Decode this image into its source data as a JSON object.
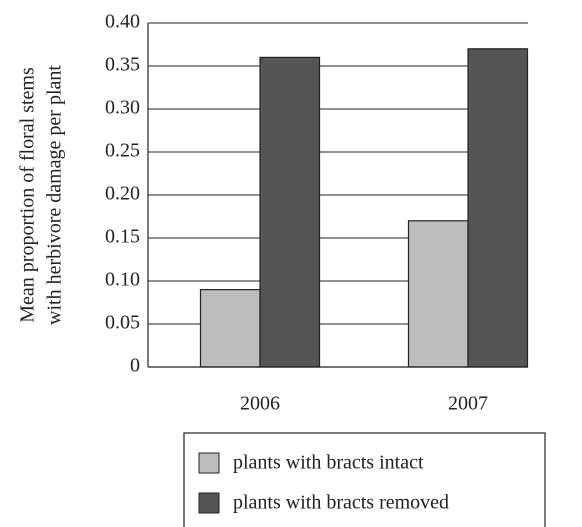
{
  "chart_data": {
    "type": "bar",
    "y_label_lines": [
      "Mean proportion of floral stems",
      "with herbivore damage per plant"
    ],
    "categories": [
      "2006",
      "2007"
    ],
    "series": [
      {
        "name": "plants with bracts intact",
        "color": "#bdbdbd",
        "values": [
          0.09,
          0.17
        ]
      },
      {
        "name": "plants with bracts removed",
        "color": "#555555",
        "values": [
          0.36,
          0.37
        ]
      }
    ],
    "ylim": [
      0,
      0.4
    ],
    "yticks": [
      0,
      0.05,
      {
        "value": 0.1,
        "label": "0.10"
      },
      0.15,
      {
        "value": 0.2,
        "label": "0.20"
      },
      0.25,
      {
        "value": 0.3,
        "label": "0.30"
      },
      0.35,
      {
        "value": 0.4,
        "label": "0.40"
      }
    ],
    "grid": true
  }
}
